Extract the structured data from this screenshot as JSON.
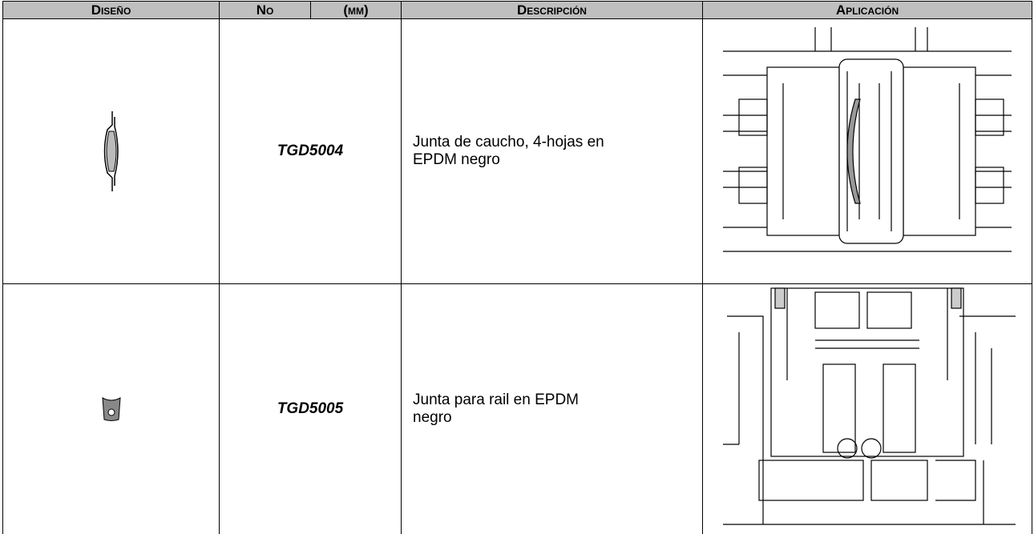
{
  "table": {
    "header": [
      "Diseño",
      "No",
      "(mm)",
      "Descripción",
      "Aplicación"
    ],
    "rows": [
      {
        "code": "TGD5004",
        "description": "Junta de caucho, 4-hojas en EPDM negro"
      },
      {
        "code": "TGD5005",
        "description": "Junta para rail en EPDM negro"
      }
    ]
  }
}
